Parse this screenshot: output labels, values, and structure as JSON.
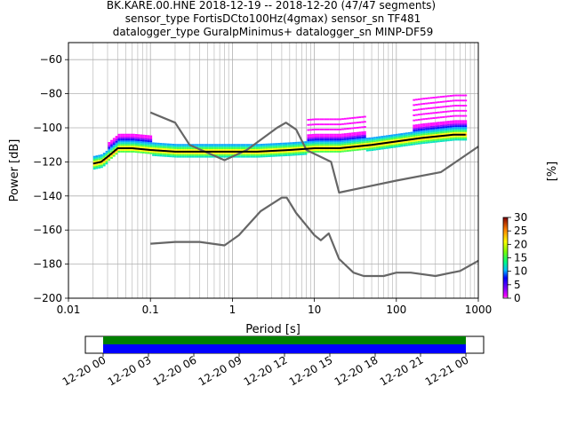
{
  "chart_data": {
    "type": "line",
    "title": [
      "BK.KARE.00.HNE   2018-12-19 -- 2018-12-20  (47/47 segments)",
      "sensor_type FortisDCto100Hz(4gmax) sensor_sn TF481",
      "datalogger_type GuralpMinimus+ datalogger_sn MINP-DF59"
    ],
    "xlabel": "Period [s]",
    "ylabel": "Power [dB]",
    "xscale": "log",
    "xlim": [
      0.01,
      1000
    ],
    "ylim": [
      -200,
      -50
    ],
    "xticks": [
      0.01,
      0.1,
      1,
      10,
      100,
      1000
    ],
    "xtick_labels": [
      "0.01",
      "0.1",
      "1",
      "10",
      "100",
      "1000"
    ],
    "yticks": [
      -200,
      -180,
      -160,
      -140,
      -120,
      -100,
      -80,
      -60
    ],
    "ytick_labels": [
      "−200",
      "−180",
      "−160",
      "−140",
      "−120",
      "−100",
      "−80",
      "−60"
    ],
    "grid": true,
    "series": [
      {
        "name": "",
        "color": "#666666",
        "x": [
          0.1,
          0.2,
          0.3,
          0.8,
          1.5,
          3.5,
          4.5,
          6,
          8,
          16,
          20,
          40,
          100,
          350,
          1000
        ],
        "y": [
          -91,
          -97,
          -110,
          -119,
          -113,
          -100,
          -97,
          -101,
          -113,
          -120,
          -138,
          -135,
          -131,
          -126,
          -111
        ]
      },
      {
        "name": "",
        "color": "#666666",
        "x": [
          0.1,
          0.2,
          0.4,
          0.8,
          1.2,
          2.2,
          4.0,
          4.6,
          6,
          10,
          12,
          15,
          20,
          30,
          40,
          70,
          100,
          150,
          300,
          600,
          1000
        ],
        "y": [
          -168,
          -167,
          -167,
          -169,
          -163,
          -149,
          -141,
          -141,
          -150,
          -163,
          -166,
          -162,
          -177,
          -185,
          -187,
          -187,
          -185,
          -185,
          -187,
          -184,
          -178
        ]
      },
      {
        "name": "",
        "color": "#000000",
        "x": [
          0.02,
          0.025,
          0.03,
          0.04,
          0.06,
          0.1,
          0.2,
          0.5,
          1,
          2,
          5,
          10,
          20,
          50,
          100,
          200,
          500,
          700
        ],
        "y": [
          -121,
          -120,
          -117,
          -112,
          -112,
          -113,
          -114,
          -114,
          -114,
          -114,
          -113,
          -112,
          -112,
          -110,
          -108,
          -106,
          -104,
          -104
        ]
      }
    ],
    "colorbar": {
      "label": "[%]",
      "ticks": [
        0,
        5,
        10,
        15,
        20,
        25,
        30
      ],
      "range": [
        0,
        30
      ]
    },
    "timeline": {
      "tick_labels": [
        "12-20 00",
        "12-20 03",
        "12-20 06",
        "12-20 09",
        "12-20 12",
        "12-20 15",
        "12-20 18",
        "12-20 21",
        "12-21 00"
      ],
      "bands": [
        {
          "name": "",
          "color": "#008000"
        },
        {
          "name": "",
          "color": "#0000ff"
        }
      ]
    }
  }
}
